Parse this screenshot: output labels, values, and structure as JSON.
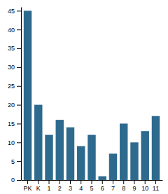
{
  "chart_data": {
    "type": "bar",
    "categories": [
      "PK",
      "K",
      "1",
      "2",
      "3",
      "4",
      "5",
      "6",
      "7",
      "8",
      "9",
      "10",
      "11"
    ],
    "values": [
      45,
      20,
      12,
      16,
      14,
      9,
      12,
      1,
      7,
      15,
      10,
      13,
      17
    ],
    "color": "#2e6a8e",
    "ylim": [
      0,
      46
    ],
    "yticks": [
      0,
      5,
      10,
      15,
      20,
      25,
      30,
      35,
      40,
      45
    ],
    "grid": false
  }
}
